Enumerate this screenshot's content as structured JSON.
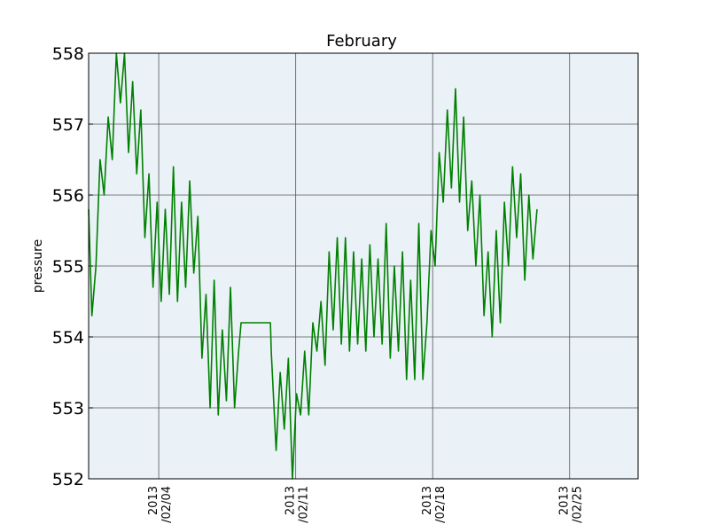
{
  "chart_data": {
    "type": "line",
    "title": "February",
    "xlabel": "",
    "ylabel": "pressure",
    "ylim": [
      552,
      558
    ],
    "xlim": [
      "2013-01-31T10:00",
      "2013-02-28T12:00"
    ],
    "yticks": [
      552,
      553,
      554,
      555,
      556,
      557,
      558
    ],
    "xticks": [
      {
        "date": "2013-02-04",
        "line1": "2013",
        "line2": "/02/04"
      },
      {
        "date": "2013-02-11",
        "line1": "2013",
        "line2": "/02/11"
      },
      {
        "date": "2013-02-18",
        "line1": "2013",
        "line2": "/02/18"
      },
      {
        "date": "2013-02-25",
        "line1": "2013",
        "line2": "/02/25"
      }
    ],
    "grid": true,
    "colors": {
      "line": "#008000",
      "plot_bg": "#eaf2f8",
      "grid": "#555555"
    },
    "series": [
      {
        "points": [
          [
            "2013-01-31T10:00",
            555.8
          ],
          [
            "2013-01-31T14:00",
            554.3
          ],
          [
            "2013-01-31T19:00",
            555.0
          ],
          [
            "2013-02-01T00:00",
            556.5
          ],
          [
            "2013-02-01T05:00",
            556.0
          ],
          [
            "2013-02-01T10:00",
            557.1
          ],
          [
            "2013-02-01T15:00",
            556.5
          ],
          [
            "2013-02-01T20:00",
            558.0
          ],
          [
            "2013-02-02T01:00",
            557.3
          ],
          [
            "2013-02-02T06:00",
            558.0
          ],
          [
            "2013-02-02T11:00",
            556.6
          ],
          [
            "2013-02-02T16:00",
            557.6
          ],
          [
            "2013-02-02T21:00",
            556.3
          ],
          [
            "2013-02-03T02:00",
            557.2
          ],
          [
            "2013-02-03T07:00",
            555.4
          ],
          [
            "2013-02-03T12:00",
            556.3
          ],
          [
            "2013-02-03T17:00",
            554.7
          ],
          [
            "2013-02-03T22:00",
            555.9
          ],
          [
            "2013-02-04T03:00",
            554.5
          ],
          [
            "2013-02-04T08:00",
            555.8
          ],
          [
            "2013-02-04T13:00",
            554.6
          ],
          [
            "2013-02-04T18:00",
            556.4
          ],
          [
            "2013-02-04T23:00",
            554.5
          ],
          [
            "2013-02-05T04:00",
            555.9
          ],
          [
            "2013-02-05T09:00",
            554.7
          ],
          [
            "2013-02-05T14:00",
            556.2
          ],
          [
            "2013-02-05T19:00",
            554.9
          ],
          [
            "2013-02-06T00:00",
            555.7
          ],
          [
            "2013-02-06T05:00",
            553.7
          ],
          [
            "2013-02-06T10:00",
            554.6
          ],
          [
            "2013-02-06T15:00",
            553.0
          ],
          [
            "2013-02-06T20:00",
            554.8
          ],
          [
            "2013-02-07T01:00",
            552.9
          ],
          [
            "2013-02-07T06:00",
            554.1
          ],
          [
            "2013-02-07T11:00",
            553.1
          ],
          [
            "2013-02-07T16:00",
            554.7
          ],
          [
            "2013-02-07T21:00",
            553.0
          ],
          [
            "2013-02-08T02:00",
            553.8
          ],
          [
            "2013-02-08T05:00",
            554.2
          ],
          [
            "2013-02-09T17:00",
            554.2
          ],
          [
            "2013-02-09T18:00",
            553.8
          ],
          [
            "2013-02-10T00:00",
            552.4
          ],
          [
            "2013-02-10T05:00",
            553.5
          ],
          [
            "2013-02-10T10:00",
            552.7
          ],
          [
            "2013-02-10T15:00",
            553.7
          ],
          [
            "2013-02-10T20:00",
            552.0
          ],
          [
            "2013-02-11T01:00",
            553.2
          ],
          [
            "2013-02-11T06:00",
            552.9
          ],
          [
            "2013-02-11T11:00",
            553.8
          ],
          [
            "2013-02-11T16:00",
            552.9
          ],
          [
            "2013-02-11T21:00",
            554.2
          ],
          [
            "2013-02-12T02:00",
            553.8
          ],
          [
            "2013-02-12T07:00",
            554.5
          ],
          [
            "2013-02-12T12:00",
            553.6
          ],
          [
            "2013-02-12T17:00",
            555.2
          ],
          [
            "2013-02-12T22:00",
            554.1
          ],
          [
            "2013-02-13T03:00",
            555.4
          ],
          [
            "2013-02-13T08:00",
            553.9
          ],
          [
            "2013-02-13T13:00",
            555.4
          ],
          [
            "2013-02-13T18:00",
            553.8
          ],
          [
            "2013-02-13T23:00",
            555.2
          ],
          [
            "2013-02-14T04:00",
            553.9
          ],
          [
            "2013-02-14T09:00",
            555.1
          ],
          [
            "2013-02-14T14:00",
            553.8
          ],
          [
            "2013-02-14T19:00",
            555.3
          ],
          [
            "2013-02-15T00:00",
            554.0
          ],
          [
            "2013-02-15T05:00",
            555.1
          ],
          [
            "2013-02-15T10:00",
            553.9
          ],
          [
            "2013-02-15T15:00",
            555.6
          ],
          [
            "2013-02-15T20:00",
            553.7
          ],
          [
            "2013-02-16T01:00",
            555.0
          ],
          [
            "2013-02-16T06:00",
            553.8
          ],
          [
            "2013-02-16T11:00",
            555.2
          ],
          [
            "2013-02-16T16:00",
            553.4
          ],
          [
            "2013-02-16T21:00",
            554.8
          ],
          [
            "2013-02-17T02:00",
            553.4
          ],
          [
            "2013-02-17T07:00",
            555.6
          ],
          [
            "2013-02-17T12:00",
            553.4
          ],
          [
            "2013-02-17T17:00",
            554.2
          ],
          [
            "2013-02-17T22:00",
            555.5
          ],
          [
            "2013-02-18T03:00",
            555.0
          ],
          [
            "2013-02-18T08:00",
            556.6
          ],
          [
            "2013-02-18T13:00",
            555.9
          ],
          [
            "2013-02-18T18:00",
            557.2
          ],
          [
            "2013-02-18T23:00",
            556.1
          ],
          [
            "2013-02-19T04:00",
            557.5
          ],
          [
            "2013-02-19T09:00",
            555.9
          ],
          [
            "2013-02-19T14:00",
            557.1
          ],
          [
            "2013-02-19T19:00",
            555.5
          ],
          [
            "2013-02-20T00:00",
            556.2
          ],
          [
            "2013-02-20T05:00",
            555.0
          ],
          [
            "2013-02-20T10:00",
            556.0
          ],
          [
            "2013-02-20T15:00",
            554.3
          ],
          [
            "2013-02-20T20:00",
            555.2
          ],
          [
            "2013-02-21T01:00",
            554.0
          ],
          [
            "2013-02-21T06:00",
            555.5
          ],
          [
            "2013-02-21T11:00",
            554.2
          ],
          [
            "2013-02-21T16:00",
            555.9
          ],
          [
            "2013-02-21T21:00",
            555.0
          ],
          [
            "2013-02-22T02:00",
            556.4
          ],
          [
            "2013-02-22T07:00",
            555.4
          ],
          [
            "2013-02-22T12:00",
            556.3
          ],
          [
            "2013-02-22T17:00",
            554.8
          ],
          [
            "2013-02-22T22:00",
            556.0
          ],
          [
            "2013-02-23T03:00",
            555.1
          ],
          [
            "2013-02-23T08:00",
            555.8
          ]
        ]
      }
    ]
  }
}
